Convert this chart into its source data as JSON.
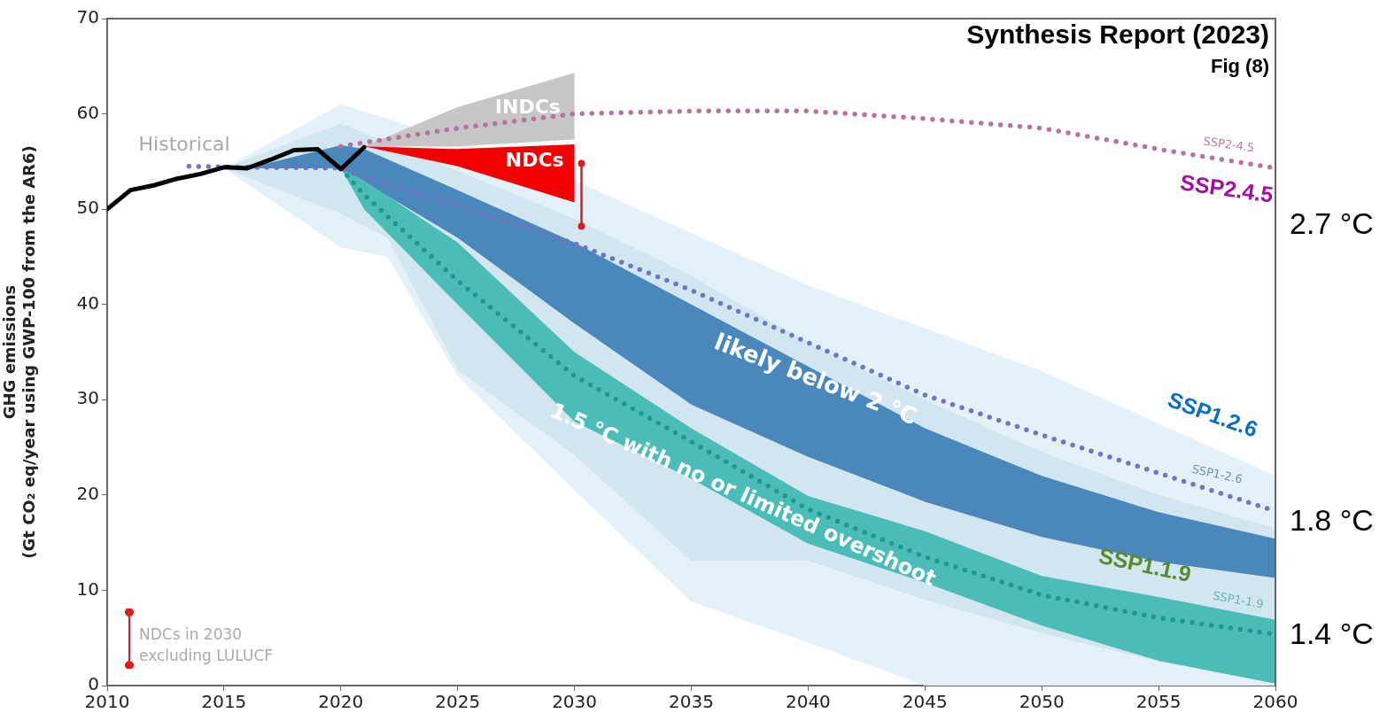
{
  "chart_data": {
    "type": "line",
    "title": "Synthesis Report (2023)",
    "subtitle": "Fig (8)",
    "ylabel": "GHG emissions\n(Gt CO₂ eq/year using GWP-100 from the AR6)",
    "xlim": [
      2010,
      2060
    ],
    "xticks": [
      2010,
      2015,
      2020,
      2025,
      2030,
      2035,
      2040,
      2045,
      2050,
      2055,
      2060
    ],
    "ylim": [
      0,
      70
    ],
    "yticks": [
      0,
      10,
      20,
      30,
      40,
      50,
      60,
      70
    ],
    "series": [
      {
        "type": "area",
        "color": "#e4f1f8",
        "x": [
          2015,
          2020,
          2022,
          2030,
          2035,
          2040,
          2045,
          2050,
          2055,
          2060,
          2060,
          2055,
          2050,
          2045,
          2040,
          2035,
          2030,
          2025,
          2022,
          2020
        ],
        "values": [
          54.3,
          61,
          59.5,
          53,
          47.5,
          42,
          37.5,
          33,
          27.5,
          22,
          0,
          0,
          0,
          0,
          4.5,
          8.8,
          20.5,
          32.5,
          45,
          46
        ]
      },
      {
        "type": "area",
        "color": "#d2e6f0",
        "x": [
          2015,
          2020,
          2025,
          2030,
          2035,
          2040,
          2045,
          2050,
          2055,
          2060,
          2060,
          2055,
          2050,
          2045,
          2040,
          2035,
          2030,
          2025,
          2022,
          2020
        ],
        "values": [
          54.3,
          59,
          54,
          49,
          43,
          36,
          30,
          24.5,
          20,
          16.5,
          0.5,
          2.5,
          5.5,
          9,
          13.1,
          13.1,
          24.2,
          33.1,
          47,
          49.5
        ]
      },
      {
        "type": "area",
        "color": "#c6c6c6",
        "x": [
          2021,
          2025,
          2030,
          2030,
          2025
        ],
        "values": [
          56.6,
          60.7,
          64.3,
          57.3,
          56.6
        ]
      },
      {
        "type": "area",
        "color": "#f20000",
        "x": [
          2021,
          2025,
          2030,
          2030,
          2025
        ],
        "values": [
          56.6,
          56.3,
          56.8,
          50.7,
          54.5
        ]
      },
      {
        "type": "area",
        "color": "#4a87ba",
        "x": [
          2016,
          2020,
          2021,
          2025,
          2030,
          2035,
          2040,
          2045,
          2050,
          2055,
          2060,
          2060,
          2055,
          2050,
          2045,
          2040,
          2035,
          2030,
          2025,
          2020
        ],
        "values": [
          54.3,
          56.7,
          56.3,
          52,
          46.5,
          40,
          33.5,
          27,
          22,
          18.2,
          15.4,
          11.3,
          13,
          15.6,
          19.3,
          24,
          29.5,
          38,
          47,
          54.3
        ]
      },
      {
        "type": "area",
        "color": "#4bbcb6",
        "x": [
          2020,
          2021,
          2025,
          2030,
          2035,
          2040,
          2045,
          2050,
          2055,
          2060,
          2060,
          2055,
          2050,
          2045,
          2040,
          2035,
          2030,
          2025,
          2021
        ],
        "values": [
          54.3,
          53,
          46.5,
          35,
          27,
          19.9,
          16.2,
          11.5,
          9.3,
          6.9,
          0.2,
          2.6,
          6.3,
          10.8,
          14.9,
          21.7,
          27.7,
          40,
          50
        ]
      },
      {
        "type": "line",
        "line_style": "dotted",
        "color": "#b5739d",
        "x": [
          2020,
          2025,
          2030,
          2035,
          2040,
          2045,
          2050,
          2055,
          2060
        ],
        "values": [
          56.6,
          58.5,
          60,
          60.3,
          60.3,
          59.5,
          58.5,
          56.3,
          54.3
        ]
      },
      {
        "type": "line",
        "line_style": "dotted",
        "color": "#6f74c4",
        "x": [
          2013.5,
          2016,
          2020,
          2021,
          2025,
          2030,
          2035,
          2040,
          2045,
          2050,
          2055,
          2060
        ],
        "values": [
          54.5,
          54.4,
          54.3,
          53.3,
          50.4,
          46.4,
          41.5,
          36,
          30.5,
          26.3,
          22.3,
          18.3
        ]
      },
      {
        "type": "line",
        "line_style": "dotted",
        "color": "#1e9a8a",
        "x": [
          2020,
          2021,
          2023,
          2025,
          2030,
          2035,
          2040,
          2045,
          2050,
          2055,
          2060
        ],
        "values": [
          54.3,
          51.5,
          47,
          42.5,
          32.5,
          25.6,
          18.5,
          13.5,
          9.5,
          7.1,
          5.4
        ]
      },
      {
        "type": "line",
        "line_style": "solid",
        "color": "#000000",
        "x": [
          2010,
          2011,
          2012,
          2013,
          2014,
          2015,
          2016,
          2017,
          2018,
          2019,
          2020,
          2021
        ],
        "values": [
          50,
          52,
          52.5,
          53.2,
          53.7,
          54.4,
          54.3,
          55.2,
          56.2,
          56.3,
          54.2,
          56.5
        ]
      },
      {
        "type": "line",
        "line_style": "solid",
        "marker": "circle",
        "color": "#e01b1b",
        "x": [
          2030.3,
          2030.3
        ],
        "values": [
          48.2,
          54.8
        ]
      }
    ],
    "annotations": [
      "Historical",
      "INDCs",
      "NDCs",
      "likely below 2 °C",
      "1.5 °C with no or limited overshoot",
      "SSP2-4.5",
      "SSP1-2.6",
      "SSP1-1.9",
      "SSP2.4.5",
      "SSP1.2.6",
      "SSP1.1.9",
      "2.7 °C",
      "1.8 °C",
      "1.4 °C",
      "NDCs in 2030\nexcluding LULUCF"
    ]
  }
}
